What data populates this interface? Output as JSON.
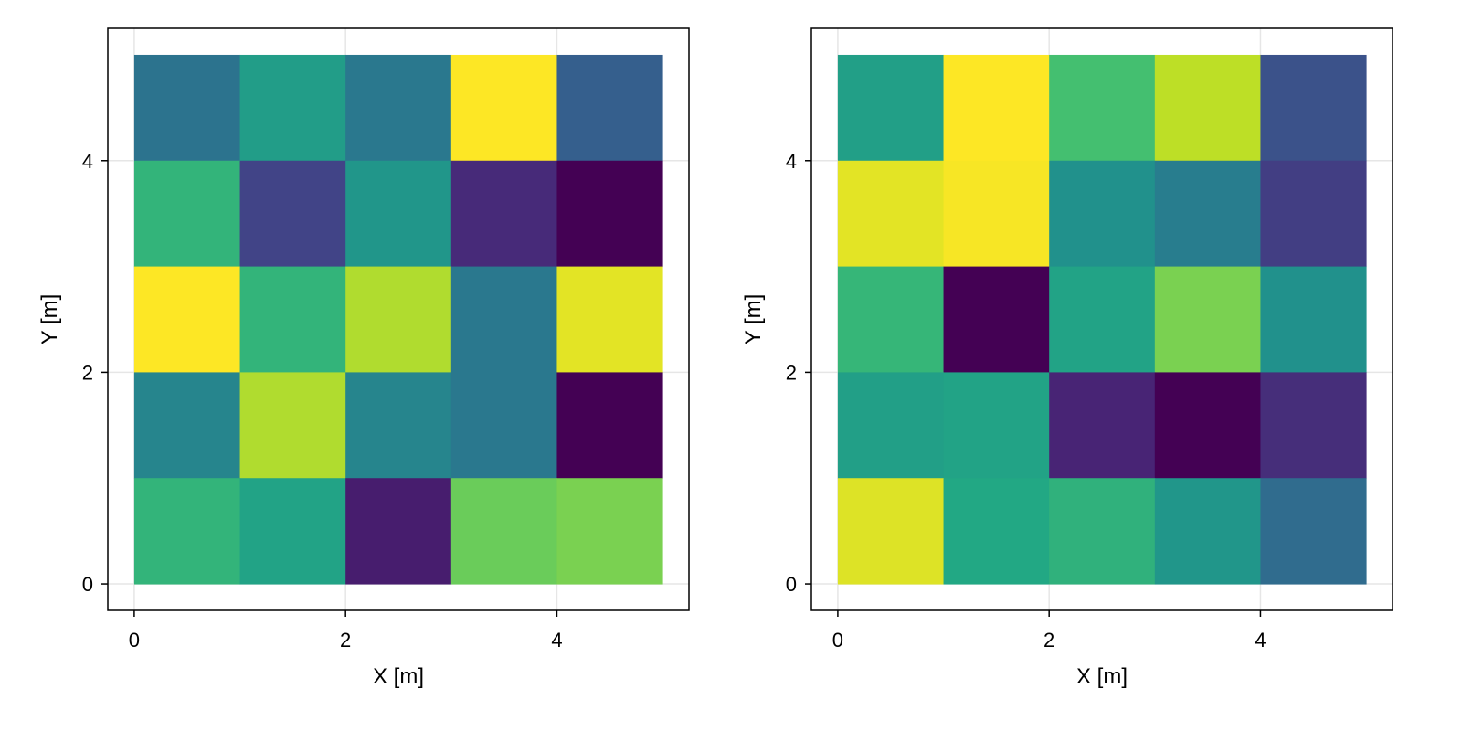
{
  "colors": {
    "background": "#ffffff",
    "grid": "#e6e6e6",
    "frame": "#000000",
    "colormap": "viridis"
  },
  "chart_data": [
    {
      "type": "heatmap",
      "title": "",
      "xlabel": "X [m]",
      "ylabel": "Y [m]",
      "xlim": [
        -0.25,
        5.25
      ],
      "ylim": [
        -0.25,
        5.25
      ],
      "x_ticks": [
        0,
        2,
        4
      ],
      "y_ticks": [
        0,
        2,
        4
      ],
      "x_tick_labels": [
        "0",
        "2",
        "4"
      ],
      "y_tick_labels": [
        "0",
        "2",
        "4"
      ],
      "grid": true,
      "x_edges": [
        0,
        1,
        2,
        3,
        4,
        5
      ],
      "y_edges": [
        0,
        1,
        2,
        3,
        4,
        5
      ],
      "values_rows_top_to_bottom": [
        [
          0.38,
          0.55,
          0.4,
          1.0,
          0.3
        ],
        [
          0.65,
          0.2,
          0.52,
          0.12,
          0.0
        ],
        [
          1.0,
          0.65,
          0.88,
          0.4,
          0.96
        ],
        [
          0.45,
          0.88,
          0.45,
          0.4,
          0.0
        ],
        [
          0.65,
          0.58,
          0.08,
          0.77,
          0.8
        ]
      ]
    },
    {
      "type": "heatmap",
      "title": "",
      "xlabel": "X [m]",
      "ylabel": "Y [m]",
      "xlim": [
        -0.25,
        5.25
      ],
      "ylim": [
        -0.25,
        5.25
      ],
      "x_ticks": [
        0,
        2,
        4
      ],
      "y_ticks": [
        0,
        2,
        4
      ],
      "x_tick_labels": [
        "0",
        "2",
        "4"
      ],
      "y_tick_labels": [
        "0",
        "2",
        "4"
      ],
      "grid": true,
      "x_edges": [
        0,
        1,
        2,
        3,
        4,
        5
      ],
      "y_edges": [
        0,
        1,
        2,
        3,
        4,
        5
      ],
      "values_rows_top_to_bottom": [
        [
          0.56,
          1.0,
          0.7,
          0.9,
          0.25
        ],
        [
          0.96,
          0.99,
          0.5,
          0.42,
          0.18
        ],
        [
          0.66,
          0.0,
          0.58,
          0.8,
          0.5
        ],
        [
          0.56,
          0.58,
          0.1,
          0.0,
          0.13
        ],
        [
          0.95,
          0.6,
          0.64,
          0.52,
          0.35
        ]
      ]
    }
  ]
}
